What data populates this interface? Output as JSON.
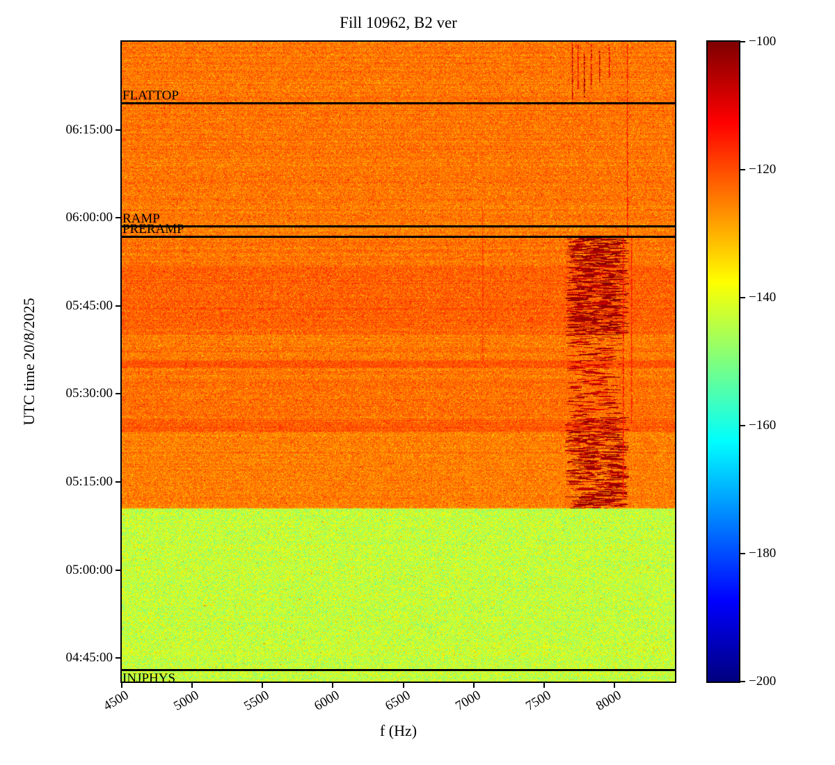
{
  "title": "Fill 10962, B2 ver",
  "xlabel": "f (Hz)",
  "ylabel": "UTC time 20/8/2025",
  "chart_data": {
    "type": "heatmap",
    "colormap": "jet",
    "x_range": [
      4500,
      8430
    ],
    "x_ticks": [
      "4500",
      "5000",
      "5500",
      "6000",
      "6500",
      "7000",
      "7500",
      "8000"
    ],
    "time_range": [
      "04:41:00",
      "06:30:00"
    ],
    "y_ticks": [
      "06:15:00",
      "06:00:00",
      "05:45:00",
      "05:30:00",
      "05:15:00",
      "05:00:00",
      "04:45:00"
    ],
    "colorbar": {
      "min": -200,
      "max": -100,
      "ticks": [
        -100,
        -120,
        -140,
        -160,
        -180,
        -200
      ],
      "tick_labels": [
        "−100",
        "−120",
        "−140",
        "−160",
        "−180",
        "−200"
      ]
    },
    "annotations": [
      {
        "label": "FLATTOP",
        "time": "06:19:30",
        "label_side": "above"
      },
      {
        "label": "RAMP",
        "time": "05:58:30",
        "label_side": "above"
      },
      {
        "label": "PRERAMP",
        "time": "05:56:45",
        "label_side": "above"
      },
      {
        "label": "INJPHYS",
        "time": "04:43:00",
        "label_side": "below"
      }
    ],
    "regions": [
      {
        "t0": "04:41:00",
        "t1": "05:10:30",
        "mean_db": -143,
        "sigma": 5
      },
      {
        "t0": "05:10:30",
        "t1": "05:23:30",
        "mean_db": -125,
        "sigma": 3.5
      },
      {
        "t0": "05:23:30",
        "t1": "05:25:30",
        "mean_db": -121.5,
        "sigma": 3.2
      },
      {
        "t0": "05:25:30",
        "t1": "05:34:30",
        "mean_db": -123.5,
        "sigma": 3.5
      },
      {
        "t0": "05:34:30",
        "t1": "05:35:45",
        "mean_db": -121,
        "sigma": 3
      },
      {
        "t0": "05:35:45",
        "t1": "05:40:00",
        "mean_db": -124.5,
        "sigma": 3.5
      },
      {
        "t0": "05:40:00",
        "t1": "05:52:00",
        "mean_db": -122,
        "sigma": 3.5
      },
      {
        "t0": "05:52:00",
        "t1": "05:56:45",
        "mean_db": -124,
        "sigma": 3.5
      },
      {
        "t0": "05:56:45",
        "t1": "06:30:00",
        "mean_db": -124,
        "sigma": 3.5
      }
    ],
    "streak_bands": [
      {
        "f0": 7650,
        "f1": 8110,
        "t0": "05:10:30",
        "t1": "05:26:00",
        "density": 0.5,
        "db": -104
      },
      {
        "f0": 7660,
        "f1": 8060,
        "t0": "05:26:00",
        "t1": "05:40:00",
        "density": 0.18,
        "db": -106
      },
      {
        "f0": 7650,
        "f1": 8110,
        "t0": "05:40:00",
        "t1": "05:57:00",
        "density": 0.6,
        "db": -103
      }
    ],
    "vertical_streaks": [
      {
        "f": 7700,
        "t0": "06:20:00",
        "t1": "06:29:30",
        "db": -107
      },
      {
        "f": 7740,
        "t0": "06:22:00",
        "t1": "06:29:30",
        "db": -110
      },
      {
        "f": 7780,
        "t0": "06:20:30",
        "t1": "06:28:00",
        "db": -105
      },
      {
        "f": 7830,
        "t0": "06:22:00",
        "t1": "06:29:30",
        "db": -108
      },
      {
        "f": 7890,
        "t0": "06:23:00",
        "t1": "06:29:00",
        "db": -106
      },
      {
        "f": 7960,
        "t0": "06:24:00",
        "t1": "06:29:30",
        "db": -111
      },
      {
        "f": 8090,
        "t0": "05:57:00",
        "t1": "06:29:30",
        "db": -114
      },
      {
        "f": 8060,
        "t0": "05:12:00",
        "t1": "05:57:00",
        "db": -113
      },
      {
        "f": 8120,
        "t0": "05:25:00",
        "t1": "05:57:00",
        "db": -115
      },
      {
        "f": 7060,
        "t0": "05:35:00",
        "t1": "06:02:00",
        "db": -118
      }
    ]
  }
}
